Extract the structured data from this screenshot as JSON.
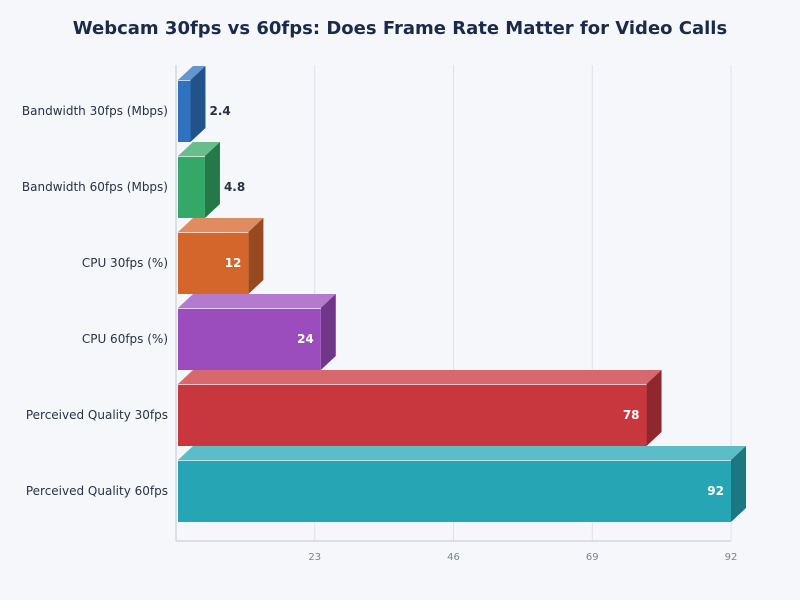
{
  "chart_data": {
    "type": "bar",
    "orientation": "horizontal",
    "style": "3d",
    "title": "Webcam 30fps vs 60fps: Does Frame Rate Matter for Video Calls",
    "xlabel": "",
    "ylabel": "",
    "categories": [
      "Bandwidth 30fps (Mbps)",
      "Bandwidth 60fps (Mbps)",
      "CPU 30fps (%)",
      "CPU 60fps (%)",
      "Perceived Quality 30fps",
      "Perceived Quality 60fps"
    ],
    "values": [
      2.4,
      4.8,
      12,
      24,
      78,
      92
    ],
    "value_labels": [
      "2.4",
      "4.8",
      "12",
      "24",
      "78",
      "92"
    ],
    "colors": [
      "#2f72c0",
      "#34a866",
      "#d4662c",
      "#9b4dbd",
      "#c8363e",
      "#26a5b4"
    ],
    "xlim": [
      0,
      92
    ],
    "xticks": [
      "23",
      "46",
      "69",
      "92"
    ],
    "grid": true,
    "legend": "none"
  }
}
